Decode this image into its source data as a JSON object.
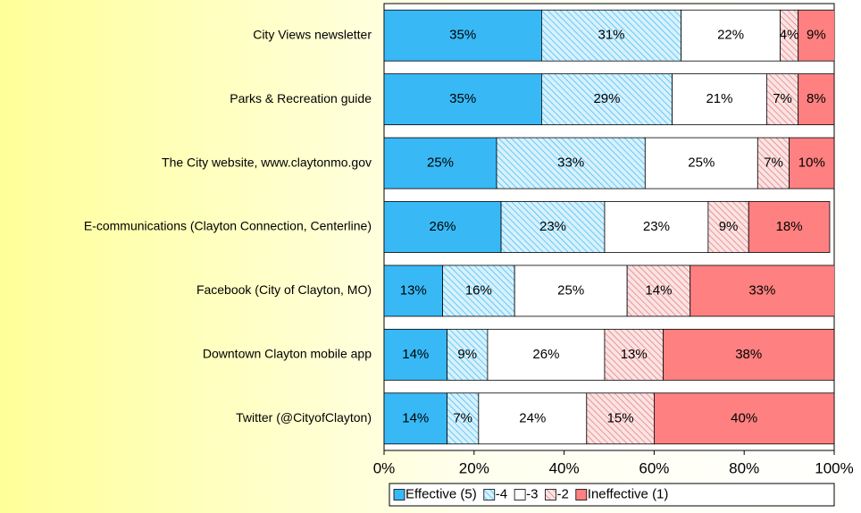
{
  "chart_data": {
    "type": "stacked-barh",
    "categories": [
      "City Views newsletter",
      "Parks & Recreation guide",
      "The City website, www.claytonmo.gov",
      "E-communications (Clayton Connection, Centerline)",
      "Facebook (City of Clayton, MO)",
      "Downtown Clayton mobile app",
      "Twitter (@CityofClayton)"
    ],
    "series": [
      {
        "name": "Effective (5)",
        "color": "#38b9f6",
        "values": [
          35,
          35,
          25,
          26,
          13,
          14,
          14
        ],
        "value_labels": [
          "35%",
          "35%",
          "25%",
          "26%",
          "13%",
          "14%",
          "14%"
        ]
      },
      {
        "name": "-4",
        "color": "#38b9f6",
        "pattern": "hatch",
        "values": [
          31,
          29,
          33,
          23,
          16,
          9,
          7
        ],
        "value_labels": [
          "31%",
          "29%",
          "33%",
          "23%",
          "16%",
          "9%",
          "7%"
        ]
      },
      {
        "name": "-3",
        "color": "#ffffff",
        "values": [
          22,
          21,
          25,
          23,
          25,
          26,
          24
        ],
        "value_labels": [
          "22%",
          "21%",
          "25%",
          "23%",
          "25%",
          "26%",
          "24%"
        ]
      },
      {
        "name": "-2",
        "color": "#e77575",
        "pattern": "hatch",
        "values": [
          4,
          7,
          7,
          9,
          14,
          13,
          15
        ],
        "value_labels": [
          "4%",
          "7%",
          "7%",
          "9%",
          "14%",
          "13%",
          "15%"
        ]
      },
      {
        "name": "Ineffective (1)",
        "color": "#ff8080",
        "values": [
          9,
          8,
          10,
          18,
          33,
          38,
          40
        ],
        "value_labels": [
          "9%",
          "8%",
          "10%",
          "18%",
          "33%",
          "38%",
          "40%"
        ]
      }
    ],
    "xlim": [
      0,
      100
    ],
    "xticks": [
      {
        "value": 0,
        "label": "0%"
      },
      {
        "value": 20,
        "label": "20%"
      },
      {
        "value": 40,
        "label": "40%"
      },
      {
        "value": 60,
        "label": "60%"
      },
      {
        "value": 80,
        "label": "80%"
      },
      {
        "value": 100,
        "label": "100%"
      }
    ],
    "legend": "bottom"
  }
}
